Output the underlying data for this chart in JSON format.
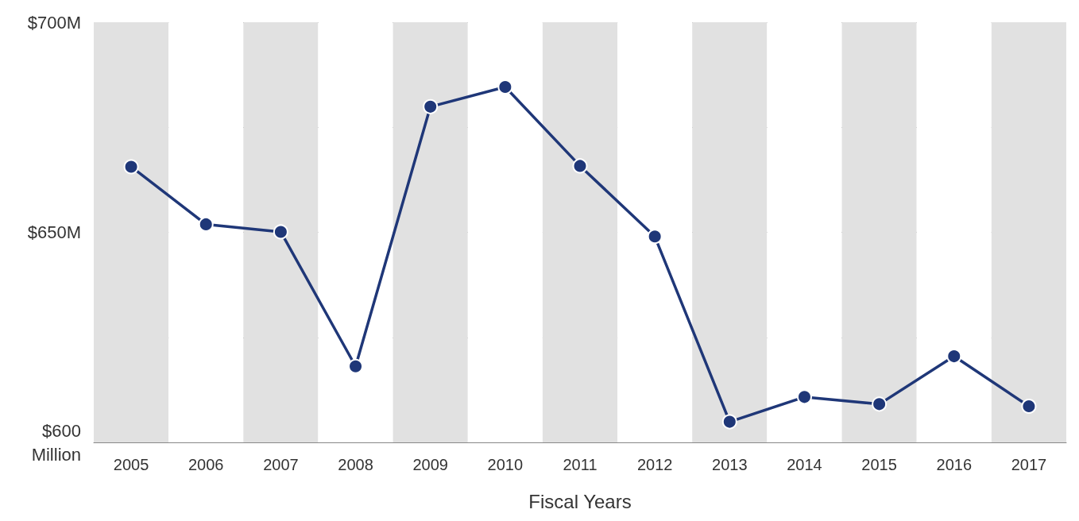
{
  "chart_data": {
    "type": "line",
    "xlabel": "Fiscal Years",
    "categories": [
      "2005",
      "2006",
      "2007",
      "2008",
      "2009",
      "2010",
      "2011",
      "2012",
      "2013",
      "2014",
      "2015",
      "2016",
      "2017"
    ],
    "series": [
      {
        "color": "#1f3778",
        "values": [
          665.6,
          651.9,
          650.1,
          618.1,
          679.9,
          684.6,
          665.8,
          649.0,
          604.9,
          610.8,
          609.1,
          620.5,
          608.6
        ]
      }
    ],
    "ylim": [
      600,
      700
    ],
    "yticks": [
      {
        "value": 600,
        "label": "$600\nMillion"
      },
      {
        "value": 625,
        "label": null
      },
      {
        "value": 650,
        "label": "$650M"
      },
      {
        "value": 675,
        "label": null
      },
      {
        "value": 700,
        "label": "$700M"
      }
    ],
    "grid": "y",
    "marker": "circle",
    "line_style": "solid"
  }
}
